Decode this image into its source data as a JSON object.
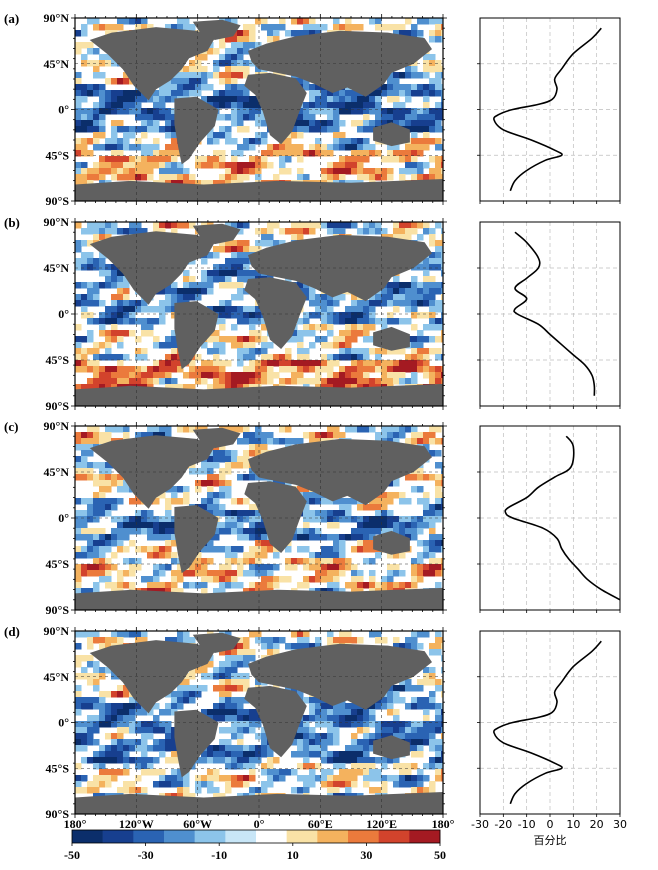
{
  "chart_data": {
    "type": "heatmap",
    "panels": [
      {
        "label": "(a)",
        "profile": {
          "lat": [
            80,
            70,
            55,
            40,
            30,
            20,
            10,
            5,
            0,
            -5,
            -10,
            -20,
            -30,
            -40,
            -45,
            -50,
            -60,
            -70,
            -80
          ],
          "values": [
            22,
            18,
            10,
            5,
            2,
            3,
            1,
            -5,
            -16,
            -22,
            -24,
            -20,
            -8,
            2,
            5,
            -2,
            -10,
            -15,
            -17
          ]
        }
      },
      {
        "label": "(b)",
        "profile": {
          "lat": [
            80,
            70,
            55,
            45,
            35,
            25,
            15,
            5,
            0,
            -10,
            -20,
            -30,
            -40,
            -50,
            -60,
            -70,
            -80
          ],
          "values": [
            -15,
            -10,
            -5,
            -5,
            -10,
            -15,
            -10,
            -15,
            -14,
            -5,
            0,
            5,
            10,
            15,
            18,
            19,
            19
          ]
        }
      },
      {
        "label": "(c)",
        "profile": {
          "lat": [
            80,
            70,
            50,
            40,
            30,
            20,
            10,
            5,
            0,
            -10,
            -20,
            -30,
            -40,
            -50,
            -60,
            -70,
            -80
          ],
          "values": [
            7,
            10,
            9,
            2,
            -5,
            -10,
            -18,
            -19,
            -16,
            -3,
            3,
            5,
            8,
            12,
            16,
            22,
            30
          ]
        }
      },
      {
        "label": "(d)",
        "profile": {
          "lat": [
            80,
            70,
            55,
            40,
            30,
            20,
            10,
            5,
            0,
            -5,
            -10,
            -20,
            -30,
            -40,
            -45,
            -50,
            -60,
            -70,
            -80
          ],
          "values": [
            22,
            18,
            10,
            5,
            2,
            3,
            1,
            -5,
            -16,
            -22,
            -24,
            -20,
            -8,
            2,
            5,
            -2,
            -10,
            -15,
            -17
          ]
        }
      }
    ],
    "map_y_ticks": [
      {
        "label": "90°N",
        "lat": 90
      },
      {
        "label": "45°N",
        "lat": 45
      },
      {
        "label": "0°",
        "lat": 0
      },
      {
        "label": "45°S",
        "lat": -45
      },
      {
        "label": "90°S",
        "lat": -90
      }
    ],
    "map_x_ticks": [
      {
        "label": "180°",
        "lon": -180
      },
      {
        "label": "120°W",
        "lon": -120
      },
      {
        "label": "60°W",
        "lon": -60
      },
      {
        "label": "0°",
        "lon": 0
      },
      {
        "label": "60°E",
        "lon": 60
      },
      {
        "label": "120°E",
        "lon": 120
      },
      {
        "label": "180°",
        "lon": 180
      }
    ],
    "profile_x_ticks": [
      "-30",
      "-20",
      "-10",
      "0",
      "10",
      "20",
      "30"
    ],
    "profile_xlim": [
      -30,
      30
    ],
    "profile_xlabel": "百分比",
    "colorbar": {
      "range": [
        -50,
        50
      ],
      "tick_values": [
        -50,
        -30,
        -10,
        10,
        30,
        50
      ],
      "tick_labels": [
        "-50",
        "-30",
        "-10",
        "10",
        "30",
        "50"
      ],
      "colors": [
        "#0b2e6b",
        "#173f8f",
        "#2a63b3",
        "#4f8fcf",
        "#8cc4ea",
        "#c8e6f7",
        "#ffffff",
        "#f9e2a6",
        "#f4b25e",
        "#eb7a3c",
        "#d2432c",
        "#a41a22"
      ]
    },
    "grid": true,
    "land_color": "#606060"
  }
}
